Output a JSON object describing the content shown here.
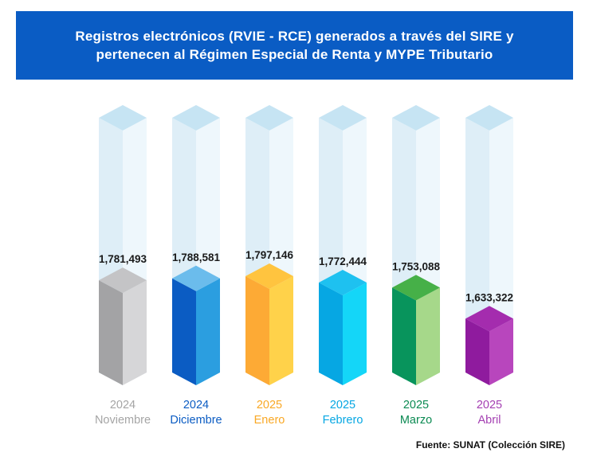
{
  "header": {
    "title": "Registros electrónicos (RVIE - RCE) generados a través del SIRE y pertenecen al Régimen Especial de Renta y MYPE Tributario"
  },
  "source": "Fuente: SUNAT (Colección SIRE)",
  "chart_data": {
    "type": "bar",
    "title": "Registros electrónicos (RVIE - RCE) generados a través del SIRE y pertenecen al Régimen Especial de Renta y MYPE Tributario",
    "categories": [
      {
        "year": "2024",
        "month": "Noviembre"
      },
      {
        "year": "2024",
        "month": "Diciembre"
      },
      {
        "year": "2025",
        "month": "Enero"
      },
      {
        "year": "2025",
        "month": "Febrero"
      },
      {
        "year": "2025",
        "month": "Marzo"
      },
      {
        "year": "2025",
        "month": "Abril"
      }
    ],
    "values": [
      1781493,
      1788581,
      1797146,
      1772444,
      1753088,
      1633322
    ],
    "value_labels": [
      "1,781,493",
      "1,788,581",
      "1,797,146",
      "1,772,444",
      "1,753,088",
      "1,633,322"
    ],
    "colors": [
      {
        "front": "#a3a3a5",
        "side": "#d6d6d8",
        "top": "#c4c4c6",
        "label": "#a5a5a5"
      },
      {
        "front": "#0b5cc3",
        "side": "#2b9ee0",
        "top": "#6bbcec",
        "label": "#0b5cc3"
      },
      {
        "front": "#fdaa35",
        "side": "#ffd24a",
        "top": "#ffc43f",
        "label": "#f9a825"
      },
      {
        "front": "#06a7e3",
        "side": "#14d6f8",
        "top": "#1ec1f0",
        "label": "#06a7e3"
      },
      {
        "front": "#08945c",
        "side": "#a6d88a",
        "top": "#46b048",
        "label": "#0b8a52"
      },
      {
        "front": "#8f1b9e",
        "side": "#b846bd",
        "top": "#a42cae",
        "label": "#a43fb2"
      }
    ],
    "ghost_colors": {
      "front": "#deeef7",
      "side": "#eef7fc",
      "top": "#c6e4f3"
    },
    "xlabel": "",
    "ylabel": "",
    "grid": false,
    "legend": "none"
  }
}
